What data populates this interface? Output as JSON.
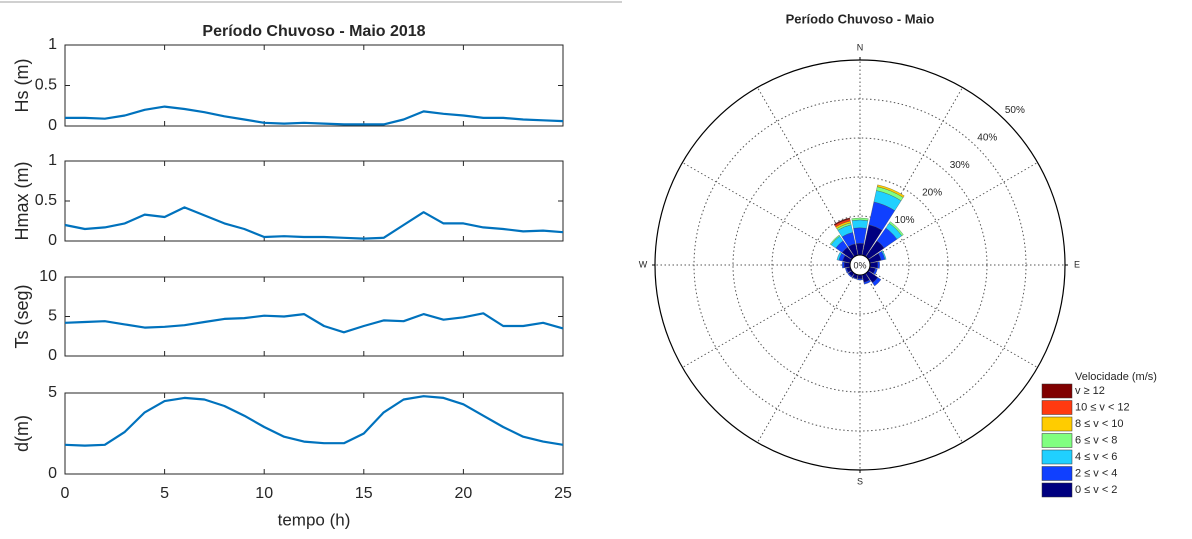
{
  "chart_data": [
    {
      "type": "line",
      "title": "Período Chuvoso - Maio 2018",
      "ylabel": "Hs (m)",
      "x": [
        0,
        1,
        2,
        3,
        4,
        5,
        6,
        7,
        8,
        9,
        10,
        11,
        12,
        13,
        14,
        15,
        16,
        17,
        18,
        19,
        20,
        21,
        22,
        23,
        24,
        25
      ],
      "values": [
        0.1,
        0.1,
        0.09,
        0.13,
        0.2,
        0.24,
        0.21,
        0.17,
        0.12,
        0.08,
        0.04,
        0.03,
        0.04,
        0.03,
        0.02,
        0.02,
        0.02,
        0.08,
        0.18,
        0.15,
        0.13,
        0.1,
        0.1,
        0.08,
        0.07,
        0.06
      ],
      "color": "#0072bd",
      "xlim": [
        0,
        25
      ],
      "xticks": [
        0,
        5,
        10,
        15,
        20,
        25
      ],
      "ylim": [
        0,
        1
      ],
      "yticks": [
        0,
        0.5,
        1
      ]
    },
    {
      "type": "line",
      "ylabel": "Hmax (m)",
      "x": [
        0,
        1,
        2,
        3,
        4,
        5,
        6,
        7,
        8,
        9,
        10,
        11,
        12,
        13,
        14,
        15,
        16,
        17,
        18,
        19,
        20,
        21,
        22,
        23,
        24,
        25
      ],
      "values": [
        0.2,
        0.15,
        0.17,
        0.22,
        0.33,
        0.3,
        0.42,
        0.32,
        0.22,
        0.15,
        0.05,
        0.06,
        0.05,
        0.05,
        0.04,
        0.03,
        0.04,
        0.2,
        0.36,
        0.22,
        0.22,
        0.17,
        0.15,
        0.12,
        0.13,
        0.11
      ],
      "color": "#0072bd",
      "xlim": [
        0,
        25
      ],
      "xticks": [
        0,
        5,
        10,
        15,
        20,
        25
      ],
      "ylim": [
        0,
        1
      ],
      "yticks": [
        0,
        0.5,
        1
      ]
    },
    {
      "type": "line",
      "ylabel": "Ts (seg)",
      "x": [
        0,
        1,
        2,
        3,
        4,
        5,
        6,
        7,
        8,
        9,
        10,
        11,
        12,
        13,
        14,
        15,
        16,
        17,
        18,
        19,
        20,
        21,
        22,
        23,
        24,
        25
      ],
      "values": [
        4.2,
        4.3,
        4.4,
        4.0,
        3.6,
        3.7,
        3.9,
        4.3,
        4.7,
        4.8,
        5.1,
        5.0,
        5.3,
        3.8,
        3.0,
        3.8,
        4.5,
        4.4,
        5.3,
        4.6,
        4.9,
        5.4,
        3.8,
        3.8,
        4.2,
        3.5
      ],
      "color": "#0072bd",
      "xlim": [
        0,
        25
      ],
      "xticks": [
        0,
        5,
        10,
        15,
        20,
        25
      ],
      "ylim": [
        0,
        10
      ],
      "yticks": [
        0,
        5,
        10
      ]
    },
    {
      "type": "line",
      "ylabel": "d(m)",
      "xlabel": "tempo (h)",
      "x": [
        0,
        1,
        2,
        3,
        4,
        5,
        6,
        7,
        8,
        9,
        10,
        11,
        12,
        13,
        14,
        15,
        16,
        17,
        18,
        19,
        20,
        21,
        22,
        23,
        24,
        25
      ],
      "values": [
        1.8,
        1.75,
        1.8,
        2.6,
        3.8,
        4.5,
        4.7,
        4.6,
        4.2,
        3.6,
        2.9,
        2.3,
        2.0,
        1.9,
        1.9,
        2.5,
        3.8,
        4.6,
        4.8,
        4.7,
        4.3,
        3.6,
        2.9,
        2.3,
        2.0,
        1.8
      ],
      "color": "#0072bd",
      "xlim": [
        0,
        25
      ],
      "xticks": [
        0,
        5,
        10,
        15,
        20,
        25
      ],
      "ylim": [
        0,
        5
      ],
      "yticks": [
        0,
        5
      ]
    },
    {
      "type": "windrose",
      "title": "Período Chuvoso - Maio",
      "legend_title": "Velocidade (m/s)",
      "directions": [
        0,
        22.5,
        45,
        67.5,
        90,
        112.5,
        135,
        157.5,
        180,
        202.5,
        225,
        247.5,
        270,
        292.5,
        315,
        337.5
      ],
      "thetaticks": [
        {
          "value": 0,
          "label": "N"
        },
        {
          "value": 90,
          "label": "E"
        },
        {
          "value": 180,
          "label": "S"
        },
        {
          "value": 270,
          "label": "W"
        }
      ],
      "rlim": [
        0,
        50
      ],
      "rticks": [
        {
          "value": 0,
          "label": "0%"
        },
        {
          "value": 10,
          "label": "10%"
        },
        {
          "value": 20,
          "label": "20%"
        },
        {
          "value": 30,
          "label": "30%"
        },
        {
          "value": 40,
          "label": "40%"
        },
        {
          "value": 50,
          "label": "50%"
        }
      ],
      "series": [
        {
          "name": "v ≥ 12",
          "color": "#800000",
          "values": [
            0,
            0,
            0,
            0,
            0,
            0,
            0,
            0,
            0,
            0,
            0,
            0,
            0,
            0,
            0,
            0.3
          ]
        },
        {
          "name": "10 ≤ v < 12",
          "color": "#ff3a10",
          "values": [
            0,
            0,
            0,
            0,
            0,
            0,
            0,
            0,
            0,
            0,
            0,
            0,
            0,
            0,
            0,
            0.5
          ]
        },
        {
          "name": "8 ≤ v < 10",
          "color": "#ffcc00",
          "values": [
            0,
            0.5,
            0,
            0,
            0,
            0,
            0,
            0,
            0,
            0,
            0,
            0,
            0,
            0,
            0,
            0.5
          ]
        },
        {
          "name": "6 ≤ v < 8",
          "color": "#80ff80",
          "values": [
            0.5,
            1,
            0.5,
            0,
            0,
            0,
            0,
            0,
            0,
            0,
            0,
            0,
            0,
            0,
            0.3,
            0.5
          ]
        },
        {
          "name": "4 ≤ v < 6",
          "color": "#20d0ff",
          "values": [
            2,
            3,
            1.5,
            0.3,
            0,
            0,
            0,
            0,
            0,
            0,
            0,
            0,
            0,
            0.5,
            1.5,
            2
          ]
        },
        {
          "name": "2 ≤ v < 4",
          "color": "#1040ff",
          "values": [
            4,
            6,
            4,
            1,
            0.5,
            0.5,
            1,
            0.5,
            0.3,
            0.2,
            0.3,
            0.3,
            0.5,
            1,
            2,
            3
          ]
        },
        {
          "name": "0 ≤ v < 2",
          "color": "#000080",
          "values": [
            3,
            8,
            5,
            3,
            2,
            1.5,
            3,
            2,
            1,
            1,
            1,
            1,
            1.5,
            2,
            3,
            3
          ]
        }
      ]
    }
  ]
}
